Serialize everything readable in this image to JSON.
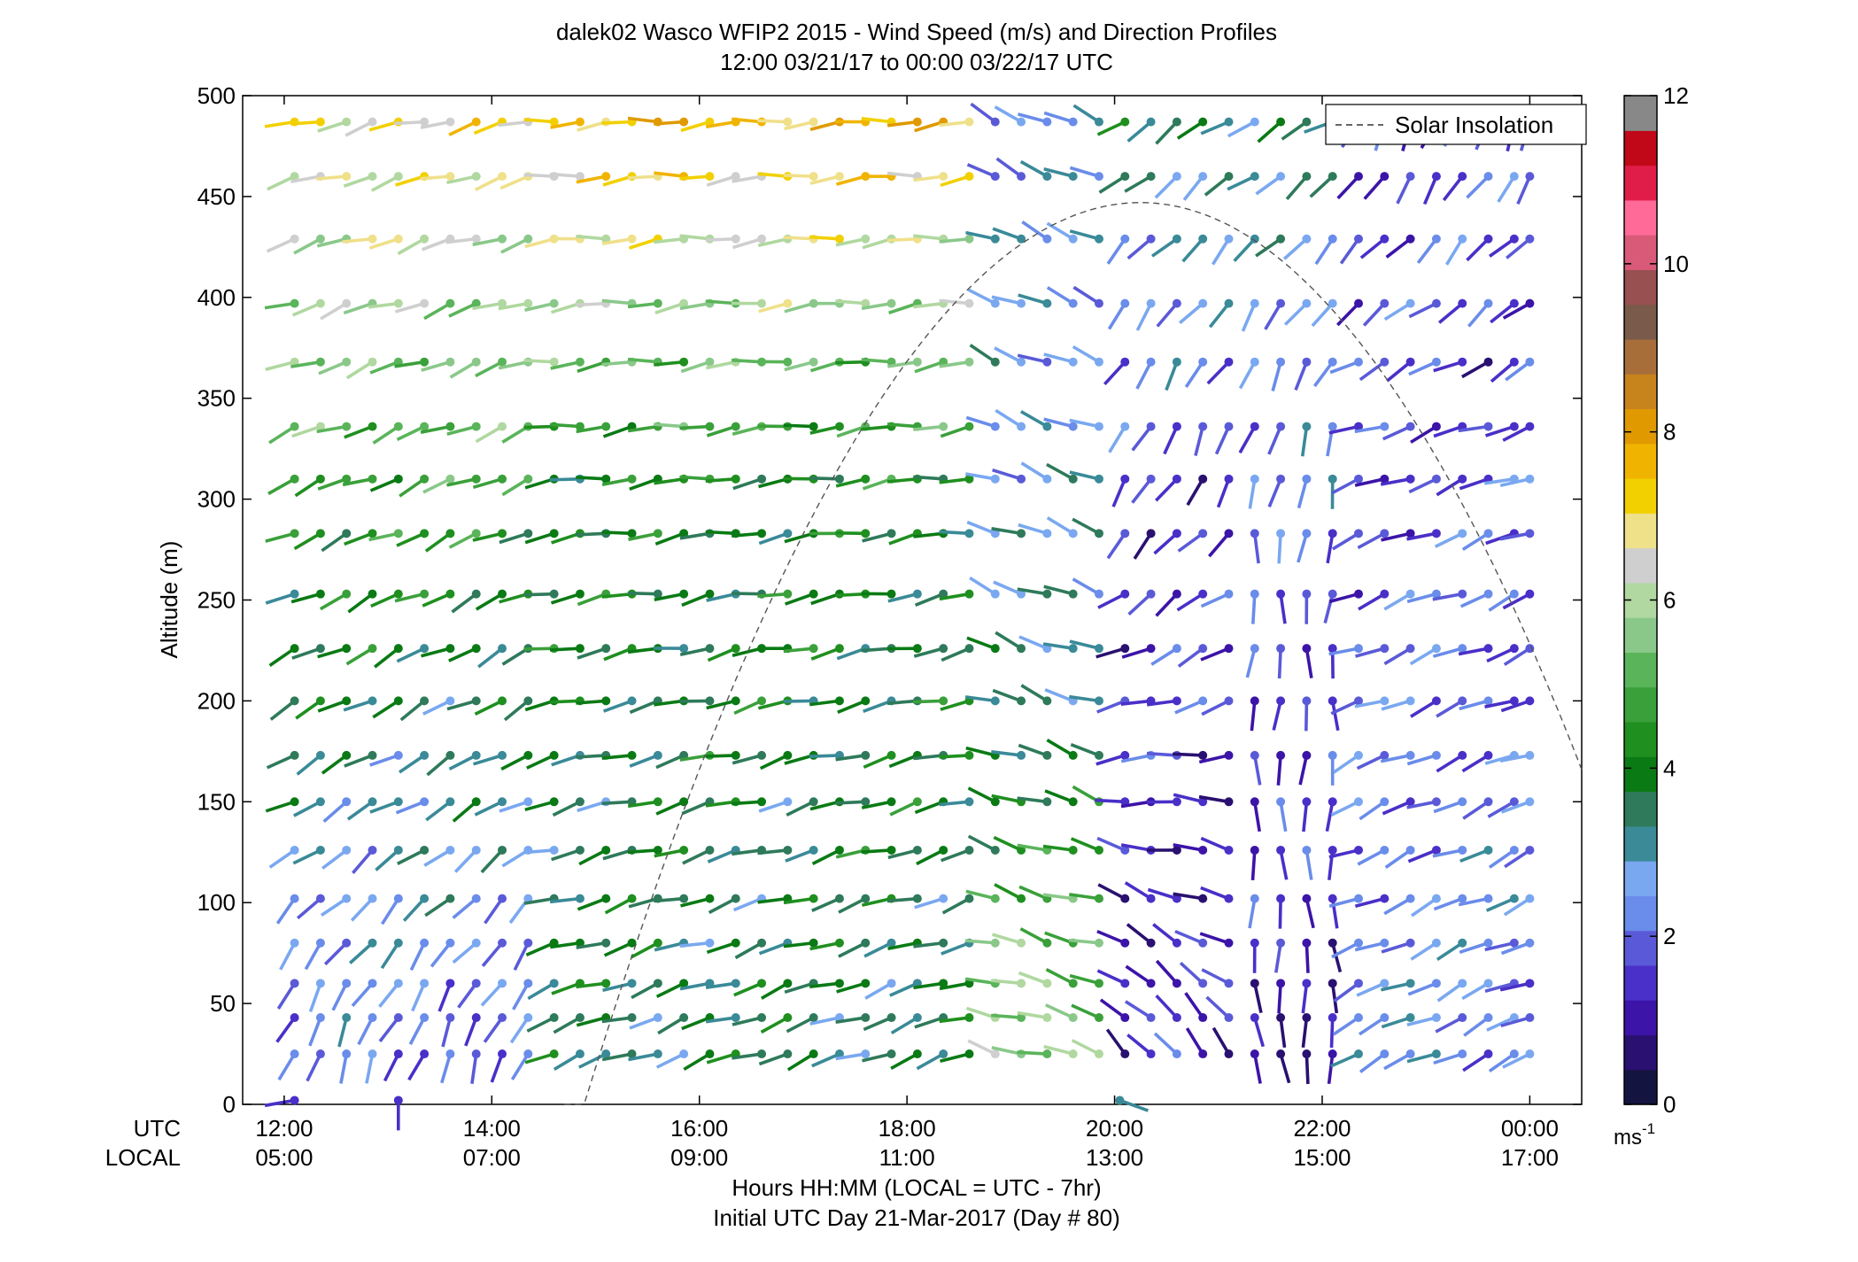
{
  "chart_data": {
    "type": "scatter",
    "subtype": "wind-barb-profiles",
    "title": "dalek02 Wasco WFIP2 2015 - Wind Speed (m/s) and Direction Profiles",
    "subtitle": "12:00 03/21/17 to 00:00 03/22/17  UTC",
    "ylabel": "Altitude (m)",
    "xlabel": "Hours HH:MM  (LOCAL = UTC - 7hr)",
    "xlabel2": "Initial UTC Day 21-Mar-2017 (Day # 80)",
    "ylim": [
      0,
      500
    ],
    "xlim_hours": [
      11.6,
      24.5
    ],
    "yticks": [
      "0",
      "50",
      "100",
      "150",
      "200",
      "250",
      "300",
      "350",
      "400",
      "450",
      "500"
    ],
    "x_row_labels": {
      "utc": "UTC",
      "local": "LOCAL"
    },
    "xticks_utc": [
      "12:00",
      "14:00",
      "16:00",
      "18:00",
      "20:00",
      "22:00",
      "00:00"
    ],
    "xticks_local": [
      "05:00",
      "07:00",
      "09:00",
      "11:00",
      "13:00",
      "15:00",
      "17:00"
    ],
    "xtick_hours": [
      12,
      14,
      16,
      18,
      20,
      22,
      24
    ],
    "legend": {
      "label": "Solar Insolation",
      "position": "top-right"
    },
    "colorbar": {
      "min": 0,
      "max": 12,
      "ticks": [
        "0",
        "2",
        "4",
        "6",
        "8",
        "10",
        "12"
      ],
      "unit_label": "ms",
      "unit_exponent": "-1",
      "colors": [
        "#141440",
        "#2a1070",
        "#3c14a8",
        "#4a2fc8",
        "#5a5ad8",
        "#6a8cea",
        "#7aa8f0",
        "#3a8a98",
        "#2e7a5a",
        "#0a7a14",
        "#1f8f1f",
        "#3aa03a",
        "#5ab45a",
        "#8ac88a",
        "#b0d8a0",
        "#cfcfcf",
        "#efe08a",
        "#f2d000",
        "#f0b400",
        "#e09a00",
        "#c8841c",
        "#a86e3a",
        "#7a5a4a",
        "#985050",
        "#d85a78",
        "#ff6a98",
        "#e01c48",
        "#c00818",
        "#888888"
      ]
    },
    "solar_insolation": {
      "start_hour": 14.7,
      "peak_hour": 20.25,
      "peak_altitude": 447,
      "end_hour": 24.5,
      "end_altitude": 166
    },
    "heights": [
      25,
      43,
      60,
      80,
      102,
      126,
      150,
      173,
      200,
      226,
      253,
      283,
      310,
      336,
      368,
      397,
      429,
      460,
      487
    ],
    "times_hours": [
      12.1,
      12.35,
      12.6,
      12.85,
      13.1,
      13.35,
      13.6,
      13.85,
      14.1,
      14.35,
      14.6,
      14.85,
      15.1,
      15.35,
      15.6,
      15.85,
      16.1,
      16.35,
      16.6,
      16.85,
      17.1,
      17.35,
      17.6,
      17.85,
      18.1,
      18.35,
      18.6,
      18.85,
      19.1,
      19.35,
      19.6,
      19.85,
      20.1,
      20.35,
      20.6,
      20.85,
      21.1,
      21.35,
      21.6,
      21.85,
      22.1,
      22.35,
      22.6,
      22.85,
      23.1,
      23.35,
      23.6,
      23.85,
      24.0
    ],
    "surface_obs": [
      {
        "t": 12.1,
        "h": 2,
        "speed": 1.5,
        "dir": 260
      },
      {
        "t": 13.1,
        "h": 2,
        "speed": 1.5,
        "dir": 180
      },
      {
        "t": 20.05,
        "h": 2,
        "speed": 3.2,
        "dir": 110
      }
    ],
    "phases": [
      {
        "from": 12.0,
        "to": 14.6,
        "low": {
          "speed": 2.0,
          "dir": 200
        },
        "mid": {
          "speed": 3.0,
          "dir": 240
        },
        "high": {
          "speed": 6.8,
          "dir": 255
        },
        "split": 150
      },
      {
        "from": 14.6,
        "to": 18.7,
        "low": {
          "speed": 3.5,
          "dir": 250
        },
        "mid": {
          "speed": 4.0,
          "dir": 262
        },
        "high": {
          "speed": 7.5,
          "dir": 265
        },
        "split": 300
      },
      {
        "from": 18.7,
        "to": 20.1,
        "low": {
          "speed": 5.8,
          "dir": 285
        },
        "mid": {
          "speed": 3.0,
          "dir": 290
        },
        "high": {
          "speed": 2.5,
          "dir": 295
        },
        "split": 230
      },
      {
        "from": 20.1,
        "to": 21.2,
        "low": {
          "speed": 1.2,
          "dir": 320
        },
        "mid": {
          "speed": 1.6,
          "dir": 205
        },
        "high": {
          "speed": 3.5,
          "dir": 235
        },
        "split": 330
      },
      {
        "from": 21.2,
        "to": 22.2,
        "low": {
          "speed": 1.0,
          "dir": 175
        },
        "mid": {
          "speed": 2.0,
          "dir": 185
        },
        "high": {
          "speed": 3.2,
          "dir": 240
        },
        "split": 290
      },
      {
        "from": 22.2,
        "to": 24.1,
        "low": {
          "speed": 2.4,
          "dir": 245
        },
        "mid": {
          "speed": 1.7,
          "dir": 250
        },
        "high": {
          "speed": 1.8,
          "dir": 205
        },
        "split": 340
      }
    ]
  }
}
